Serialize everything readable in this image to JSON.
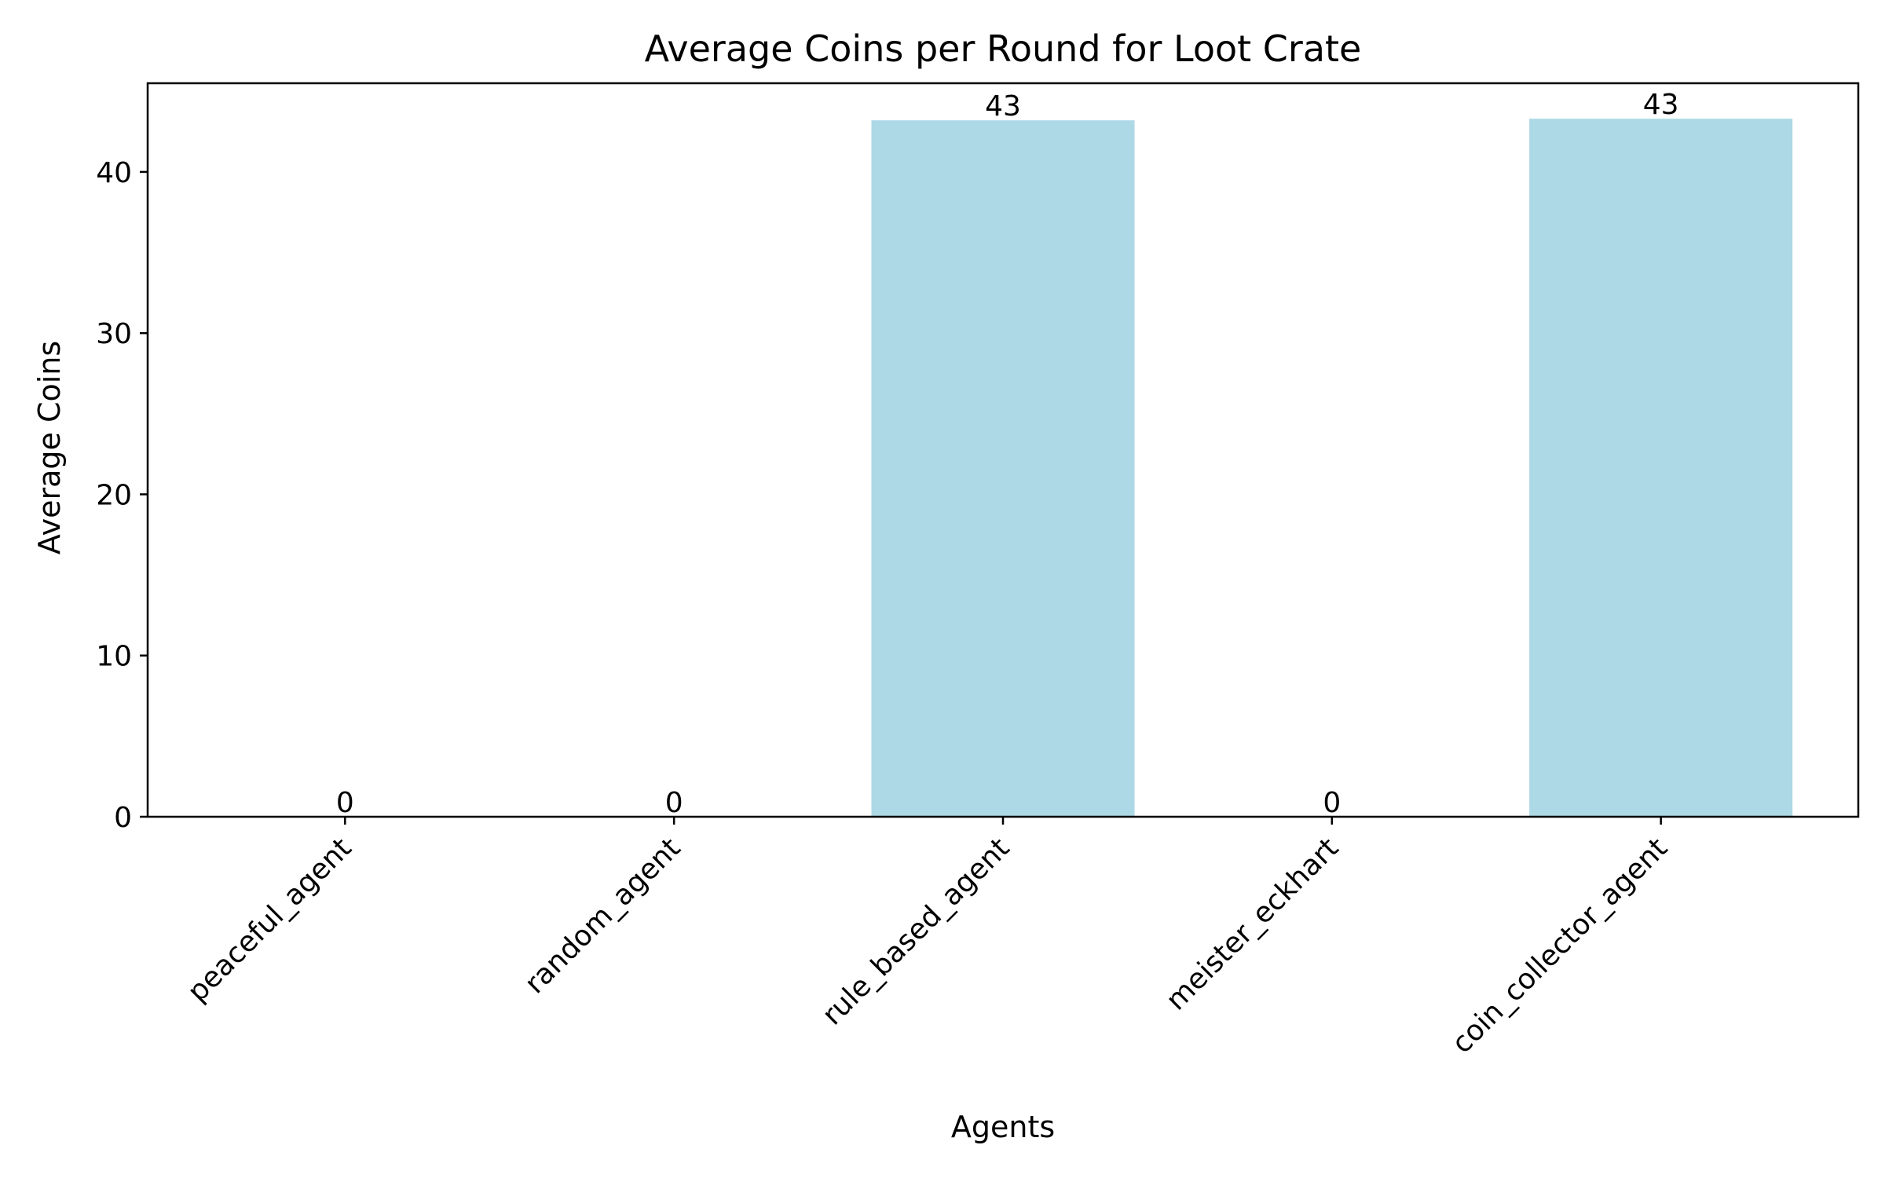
{
  "chart_data": {
    "type": "bar",
    "title": "Average Coins per Round for Loot Crate",
    "xlabel": "Agents",
    "ylabel": "Average Coins",
    "categories": [
      "peaceful_agent",
      "random_agent",
      "rule_based_agent",
      "meister_eckhart",
      "coin_collector_agent"
    ],
    "values": [
      0,
      0,
      43.2,
      0,
      43.3
    ],
    "value_labels": [
      "0",
      "0",
      "43",
      "0",
      "43"
    ],
    "ylim": [
      0,
      45.5
    ],
    "yticks": [
      0,
      10,
      20,
      30,
      40
    ],
    "x_tick_rotation_deg": 45,
    "grid": false,
    "legend": "none",
    "bar_color": "#add8e6"
  }
}
